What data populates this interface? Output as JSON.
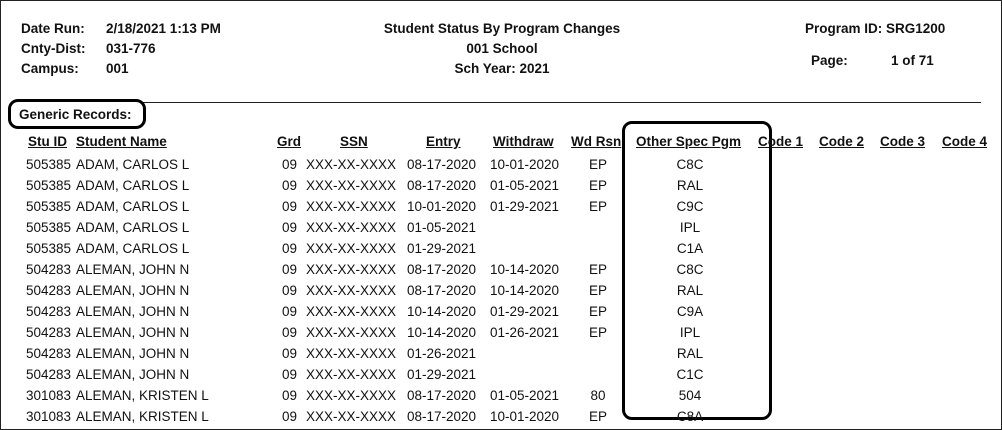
{
  "header": {
    "left": [
      {
        "label": "Date Run:",
        "value": "2/18/2021 1:13 PM"
      },
      {
        "label": "Cnty-Dist:",
        "value": "031-776"
      },
      {
        "label": "Campus:",
        "value": "001"
      }
    ],
    "center": [
      "Student Status By Program Changes",
      "001 School",
      "Sch Year: 2021"
    ],
    "program_id": "Program ID: SRG1200",
    "page_label": "Page:",
    "page_value": "1 of 71"
  },
  "section": "Generic Records:",
  "table": {
    "columns": [
      "Stu ID",
      "Student Name",
      "Grd",
      "SSN",
      "Entry",
      "Withdraw",
      "Wd Rsn",
      "Other Spec Pgm",
      "Code 1",
      "Code 2",
      "Code 3",
      "Code 4"
    ],
    "rows": [
      [
        "505385",
        "ADAM, CARLOS L",
        "09",
        "XXX-XX-XXXX",
        "08-17-2020",
        "10-01-2020",
        "EP",
        "C8C"
      ],
      [
        "505385",
        "ADAM, CARLOS L",
        "09",
        "XXX-XX-XXXX",
        "08-17-2020",
        "01-05-2021",
        "EP",
        "RAL"
      ],
      [
        "505385",
        "ADAM, CARLOS L",
        "09",
        "XXX-XX-XXXX",
        "10-01-2020",
        "01-29-2021",
        "EP",
        "C9C"
      ],
      [
        "505385",
        "ADAM, CARLOS L",
        "09",
        "XXX-XX-XXXX",
        "01-05-2021",
        null,
        null,
        "IPL"
      ],
      [
        "505385",
        "ADAM, CARLOS L",
        "09",
        "XXX-XX-XXXX",
        "01-29-2021",
        null,
        null,
        "C1A"
      ],
      [
        "504283",
        "ALEMAN, JOHN N",
        "09",
        "XXX-XX-XXXX",
        "08-17-2020",
        "10-14-2020",
        "EP",
        "C8C"
      ],
      [
        "504283",
        "ALEMAN, JOHN N",
        "09",
        "XXX-XX-XXXX",
        "08-17-2020",
        "10-14-2020",
        "EP",
        "RAL"
      ],
      [
        "504283",
        "ALEMAN, JOHN N",
        "09",
        "XXX-XX-XXXX",
        "10-14-2020",
        "01-29-2021",
        "EP",
        "C9A"
      ],
      [
        "504283",
        "ALEMAN, JOHN N",
        "09",
        "XXX-XX-XXXX",
        "10-14-2020",
        "01-26-2021",
        "EP",
        "IPL"
      ],
      [
        "504283",
        "ALEMAN, JOHN N",
        "09",
        "XXX-XX-XXXX",
        "01-26-2021",
        null,
        null,
        "RAL"
      ],
      [
        "504283",
        "ALEMAN, JOHN N",
        "09",
        "XXX-XX-XXXX",
        "01-29-2021",
        null,
        null,
        "C1C"
      ],
      [
        "301083",
        "ALEMAN, KRISTEN L",
        "09",
        "XXX-XX-XXXX",
        "08-17-2020",
        "01-05-2021",
        "80",
        "504"
      ],
      [
        "301083",
        "ALEMAN, KRISTEN L",
        "09",
        "XXX-XX-XXXX",
        "08-17-2020",
        "10-01-2020",
        "EP",
        "C8A"
      ]
    ]
  }
}
